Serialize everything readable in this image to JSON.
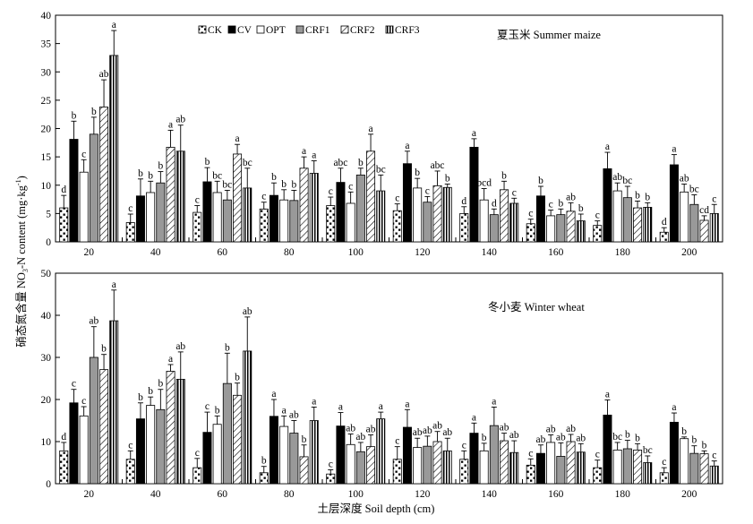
{
  "chart_data": [
    {
      "type": "bar",
      "title": "夏玉米 Summer maize",
      "xlabel": "",
      "ylabel": "",
      "ylim": [
        0,
        40
      ],
      "yticks": [
        0,
        5,
        10,
        15,
        20,
        25,
        30,
        35,
        40
      ],
      "categories": [
        "20",
        "40",
        "60",
        "80",
        "100",
        "120",
        "140",
        "160",
        "180",
        "200"
      ],
      "legend_position": "top-center",
      "series": [
        {
          "name": "CK",
          "values": [
            6.0,
            3.4,
            5.2,
            5.8,
            6.4,
            5.5,
            5.0,
            3.2,
            2.9,
            1.7
          ],
          "errors": [
            2.2,
            1.5,
            1.2,
            1.2,
            1.5,
            1.2,
            1.2,
            0.8,
            0.8,
            0.8
          ]
        },
        {
          "name": "CV",
          "values": [
            18.1,
            8.1,
            10.6,
            8.2,
            10.5,
            13.8,
            16.7,
            8.1,
            12.9,
            13.6
          ],
          "errors": [
            3.2,
            3.0,
            2.5,
            2.2,
            2.5,
            2.2,
            1.5,
            1.7,
            2.9,
            1.8
          ]
        },
        {
          "name": "OPT",
          "values": [
            12.3,
            8.7,
            8.7,
            7.4,
            6.8,
            9.5,
            7.4,
            4.6,
            9.0,
            8.8
          ],
          "errors": [
            2.2,
            2.0,
            2.0,
            1.8,
            2.0,
            1.7,
            2.0,
            1.0,
            1.4,
            1.4
          ]
        },
        {
          "name": "CRF1",
          "values": [
            19.0,
            10.4,
            7.4,
            7.3,
            11.8,
            7.0,
            4.8,
            4.8,
            7.8,
            6.6
          ],
          "errors": [
            3.0,
            2.0,
            1.7,
            1.8,
            1.2,
            1.0,
            1.0,
            1.0,
            2.0,
            1.7
          ]
        },
        {
          "name": "CRF2",
          "values": [
            23.8,
            16.7,
            15.5,
            13.0,
            16.0,
            9.9,
            9.2,
            5.4,
            6.0,
            3.8
          ],
          "errors": [
            4.8,
            3.0,
            1.7,
            2.0,
            3.0,
            2.6,
            1.5,
            1.5,
            1.2,
            0.8
          ]
        },
        {
          "name": "CRF3",
          "values": [
            32.9,
            16.0,
            9.5,
            12.1,
            9.0,
            9.6,
            6.8,
            3.7,
            6.1,
            5.0
          ],
          "errors": [
            4.4,
            4.6,
            3.5,
            2.2,
            2.8,
            0.6,
            0.9,
            1.2,
            0.8,
            1.6
          ]
        }
      ],
      "significance_letters": {
        "CK": [
          "d",
          "c",
          "c",
          "c",
          "c",
          "c",
          "d",
          "c",
          "c",
          "d"
        ],
        "CV": [
          "b",
          "b",
          "b",
          "b",
          "abc",
          "a",
          "a",
          "b",
          "a",
          "a"
        ],
        "OPT": [
          "c",
          "b",
          "bc",
          "b",
          "c",
          "b",
          "bcd",
          "c",
          "ab",
          "ab"
        ],
        "CRF1": [
          "b",
          "b",
          "bc",
          "b",
          "b",
          "c",
          "d",
          "b",
          "bc",
          "bc"
        ],
        "CRF2": [
          "ab",
          "a",
          "a",
          "a",
          "a",
          "abc",
          "b",
          "ab",
          "b",
          "cd"
        ],
        "CRF3": [
          "a",
          "ab",
          "bc",
          "a",
          "bc",
          "b",
          "c",
          "b",
          "b",
          "c"
        ]
      }
    },
    {
      "type": "bar",
      "title": "冬小麦 Winter wheat",
      "xlabel": "土层深度 Soil depth (cm)",
      "ylabel": "",
      "ylim": [
        0,
        50
      ],
      "yticks": [
        0,
        10,
        20,
        30,
        40,
        50
      ],
      "categories": [
        "20",
        "40",
        "60",
        "80",
        "100",
        "120",
        "140",
        "160",
        "180",
        "200"
      ],
      "series": [
        {
          "name": "CK",
          "values": [
            7.8,
            5.8,
            3.8,
            2.6,
            2.3,
            5.8,
            5.8,
            4.4,
            3.8,
            2.6
          ],
          "errors": [
            2.0,
            2.0,
            2.2,
            1.5,
            1.0,
            3.0,
            2.0,
            1.5,
            1.8,
            1.2
          ]
        },
        {
          "name": "CV",
          "values": [
            19.2,
            15.4,
            12.2,
            16.0,
            13.7,
            13.4,
            12.0,
            7.2,
            16.3,
            14.6
          ],
          "errors": [
            3.2,
            3.8,
            4.8,
            4.0,
            3.2,
            4.2,
            2.4,
            2.0,
            3.6,
            2.2
          ]
        },
        {
          "name": "OPT",
          "values": [
            16.1,
            18.6,
            14.1,
            13.6,
            9.3,
            8.6,
            7.8,
            9.8,
            8.0,
            10.7
          ],
          "errors": [
            2.2,
            2.0,
            2.0,
            2.5,
            2.5,
            2.2,
            1.8,
            1.8,
            1.8,
            0.4
          ]
        },
        {
          "name": "CRF1",
          "values": [
            30.0,
            17.6,
            23.8,
            12.0,
            7.6,
            8.9,
            13.8,
            6.5,
            8.3,
            7.2
          ],
          "errors": [
            7.3,
            4.8,
            7.2,
            3.0,
            2.2,
            2.4,
            4.4,
            3.2,
            2.0,
            1.8
          ]
        },
        {
          "name": "CRF2",
          "values": [
            27.1,
            26.7,
            21.0,
            6.4,
            8.8,
            10.0,
            10.2,
            10.0,
            8.0,
            7.1
          ],
          "errors": [
            3.6,
            1.6,
            2.9,
            2.8,
            2.8,
            2.4,
            1.8,
            1.7,
            1.5,
            0.7
          ]
        },
        {
          "name": "CRF3",
          "values": [
            38.7,
            24.8,
            31.5,
            15.0,
            15.4,
            7.8,
            7.4,
            7.5,
            5.0,
            4.2
          ],
          "errors": [
            7.3,
            6.5,
            8.1,
            3.2,
            1.6,
            3.0,
            2.8,
            2.0,
            1.6,
            1.2
          ]
        }
      ],
      "significance_letters": {
        "CK": [
          "d",
          "c",
          "c",
          "b",
          "c",
          "c",
          "c",
          "c",
          "c",
          "c"
        ],
        "CV": [
          "c",
          "b",
          "c",
          "a",
          "a",
          "a",
          "a",
          "ab",
          "a",
          "a"
        ],
        "OPT": [
          "c",
          "b",
          "b",
          "a",
          "ab",
          "ab",
          "b",
          "ab",
          "bc",
          "b"
        ],
        "CRF1": [
          "ab",
          "b",
          "b",
          "ab",
          "ab",
          "ab",
          "a",
          "ab",
          "b",
          "b"
        ],
        "CRF2": [
          "b",
          "a",
          "b",
          "b",
          "ab",
          "ab",
          "ab",
          "ab",
          "b",
          "b"
        ],
        "CRF3": [
          "a",
          "ab",
          "ab",
          "a",
          "a",
          "ab",
          "ab",
          "ab",
          "bc",
          "c"
        ]
      }
    }
  ],
  "shared_ylabel": "硝态氮含量 NO3-N content (mg·kg-1)"
}
